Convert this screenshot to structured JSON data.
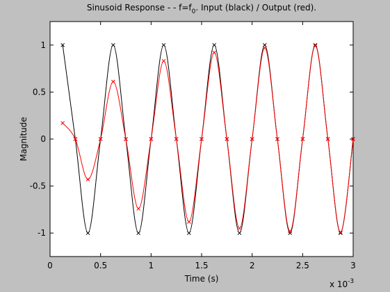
{
  "chart_data": {
    "type": "line",
    "title": {
      "main": "Sinusoid Response - - f=f",
      "subscript": "0",
      "suffix": ". Input (black) /  Output (red)."
    },
    "xlabel": "Time (s)",
    "ylabel": "Magnitude",
    "x_multiplier": {
      "base": "x 10",
      "exponent": "-3"
    },
    "xlim": [
      0,
      0.003
    ],
    "ylim": [
      -1.25,
      1.25
    ],
    "xticks": [
      0,
      0.0005,
      0.001,
      0.0015,
      0.002,
      0.0025,
      0.003
    ],
    "xtick_labels": [
      "0",
      "0.5",
      "1",
      "1.5",
      "2",
      "2.5",
      "3"
    ],
    "yticks": [
      -1,
      -0.5,
      0,
      0.5,
      1
    ],
    "ytick_labels": [
      "-1",
      "-0.5",
      "0",
      "0.5",
      "1"
    ],
    "grid": false,
    "background_color": "#c0c0c0",
    "plot_area_color": "#ffffff",
    "series": [
      {
        "name": "Input",
        "color": "#000000",
        "marker": "x",
        "x": [
          0.000125,
          0.00025,
          0.000375,
          0.0005,
          0.000625,
          0.00075,
          0.000875,
          0.001,
          0.001125,
          0.00125,
          0.001375,
          0.0015,
          0.001625,
          0.00175,
          0.001875,
          0.002,
          0.002125,
          0.00225,
          0.002375,
          0.0025,
          0.002625,
          0.00275,
          0.002875,
          0.003
        ],
        "y": [
          1,
          0,
          -1,
          0,
          1,
          0,
          -1,
          0,
          1,
          0,
          -1,
          0,
          1,
          0,
          -1,
          0,
          1,
          0,
          -1,
          0,
          1,
          0,
          -1,
          0
        ]
      },
      {
        "name": "Output",
        "color": "#ff0000",
        "marker": "x",
        "x": [
          0.000125,
          0.00025,
          0.000375,
          0.0005,
          0.000625,
          0.00075,
          0.000875,
          0.001,
          0.001125,
          0.00125,
          0.001375,
          0.0015,
          0.001625,
          0.00175,
          0.001875,
          0.002,
          0.002125,
          0.00225,
          0.002375,
          0.0025,
          0.002625,
          0.00275,
          0.002875,
          0.003
        ],
        "y": [
          0.17,
          0,
          -0.43,
          0,
          0.61,
          0,
          -0.74,
          0,
          0.83,
          0,
          -0.88,
          0,
          0.92,
          0,
          -0.95,
          0,
          0.97,
          0,
          -0.98,
          0,
          0.99,
          0,
          -0.99,
          0
        ]
      }
    ]
  }
}
